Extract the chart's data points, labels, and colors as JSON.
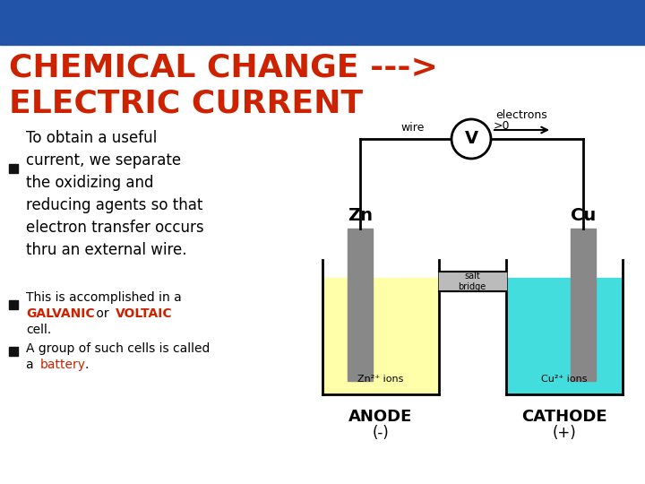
{
  "background_color": "#ffffff",
  "title_line1": "CHEMICAL CHANGE --->",
  "title_line2": "ELECTRIC CURRENT",
  "title_color": "#cc2200",
  "bullet1_main": "To obtain a useful\ncurrent, we separate\nthe oxidizing and\nreducing agents so that\nelectron transfer occurs\nthru an external wire.",
  "header_bg": "#2255aa",
  "zn_electrode_color": "#888888",
  "cu_electrode_color": "#888888",
  "zn_solution_color": "#ffffaa",
  "cu_solution_color": "#44dddd",
  "zn_label": "Zn",
  "cu_label": "Cu",
  "zn_ions_label": "Zn²⁺ ions",
  "cu_ions_label": "Cu²⁺ ions",
  "wire_label": "wire",
  "electrons_label": "electrons",
  "salt_bridge_label": "salt\nbridge",
  "voltmeter_label": "V",
  "anode_label": "ANODE",
  "cathode_label": "CATHODE",
  "anode_sign": "(-)",
  "cathode_sign": "(+)"
}
